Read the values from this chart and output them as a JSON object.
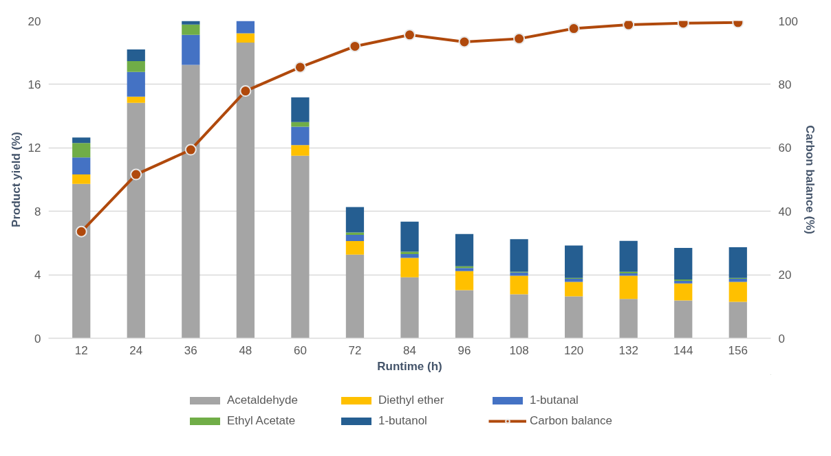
{
  "chart_data": {
    "type": "bar",
    "stacked": true,
    "xlabel": "Runtime (h)",
    "ylabel": "Product yield (%)",
    "y2label": "Carbon balance (%)",
    "categories": [
      "12",
      "24",
      "36",
      "48",
      "60",
      "72",
      "84",
      "96",
      "108",
      "120",
      "132",
      "144",
      "156"
    ],
    "ylim": [
      0,
      20
    ],
    "yticks": [
      0,
      4,
      8,
      12,
      16,
      20
    ],
    "y2lim": [
      0,
      100
    ],
    "y2ticks": [
      0,
      20,
      40,
      60,
      80,
      100
    ],
    "grid": "y",
    "legend": "bottom",
    "series": [
      {
        "name": "Acetaldehyde",
        "color": "#a5a5a5",
        "values": [
          9.73,
          14.84,
          17.23,
          18.64,
          11.5,
          5.27,
          3.84,
          3.03,
          2.77,
          2.64,
          2.48,
          2.38,
          2.29
        ]
      },
      {
        "name": "Diethyl ether",
        "color": "#ffc000",
        "values": [
          0.59,
          0.39,
          0,
          0.58,
          0.67,
          0.86,
          1.22,
          1.2,
          1.17,
          0.91,
          1.46,
          1.07,
          1.26
        ]
      },
      {
        "name": "1-butanal",
        "color": "#4472c4",
        "values": [
          1.08,
          1.56,
          1.89,
          0.78,
          1.16,
          0.39,
          0.24,
          0.2,
          0.2,
          0.2,
          0.15,
          0.17,
          0.2
        ]
      },
      {
        "name": "Ethyl Acetate",
        "color": "#70ad47",
        "values": [
          0.91,
          0.68,
          0.65,
          null,
          0.3,
          0.15,
          0.15,
          0.1,
          0.05,
          0.05,
          0.1,
          0.08,
          0.05
        ]
      },
      {
        "name": "1-butanol",
        "color": "#255e91",
        "values": [
          0.34,
          0.73,
          0.23,
          null,
          1.55,
          1.6,
          1.9,
          2.04,
          2.05,
          2.04,
          1.95,
          1.99,
          1.94
        ]
      },
      {
        "name": "Carbon balance",
        "type": "line",
        "axis": "y2",
        "color": "#b0490c",
        "marker": "circle",
        "values": [
          33.6,
          51.6,
          59.4,
          77.9,
          85.4,
          92,
          95.6,
          93.4,
          94.4,
          97.6,
          98.8,
          99.3,
          99.5
        ]
      }
    ]
  }
}
